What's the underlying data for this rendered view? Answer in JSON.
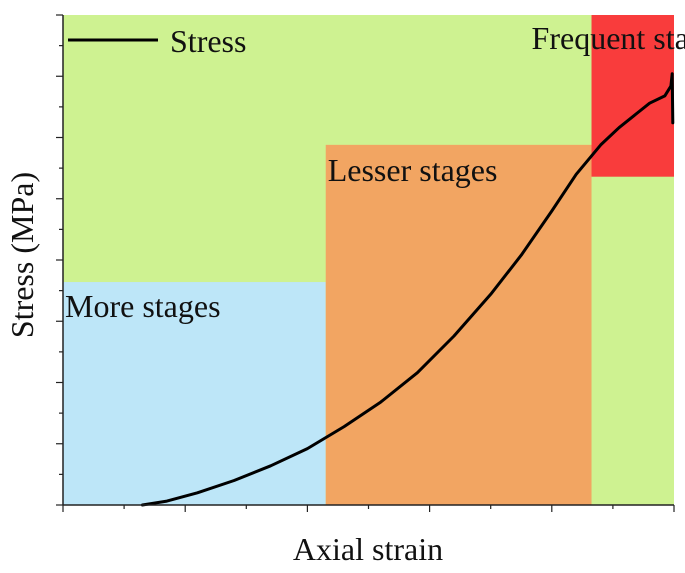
{
  "chart_data": {
    "type": "line",
    "xlabel": "Axial strain",
    "ylabel": "Stress (MPa)",
    "xlim": [
      0,
      1
    ],
    "ylim": [
      0,
      1
    ],
    "legend": {
      "position": "top-left",
      "entries": [
        "Stress"
      ]
    },
    "regions": [
      {
        "name": "More stages",
        "x0": 0.0,
        "x1": 0.43,
        "y0": 0.0,
        "y1": 0.455,
        "color": "#bde6f8"
      },
      {
        "name": "Lesser stages",
        "x0": 0.43,
        "x1": 0.865,
        "y0": 0.0,
        "y1": 0.735,
        "color": "#f2a562"
      },
      {
        "name": "Frequent stages",
        "x0": 0.865,
        "x1": 1.0,
        "y0": 0.67,
        "y1": 1.0,
        "color": "#f93c3c"
      }
    ],
    "background_color": "#cef291",
    "series": [
      {
        "name": "Stress",
        "color": "#000000",
        "x": [
          0.13,
          0.17,
          0.22,
          0.28,
          0.34,
          0.4,
          0.46,
          0.52,
          0.58,
          0.64,
          0.7,
          0.75,
          0.8,
          0.84,
          0.88,
          0.91,
          0.94,
          0.96,
          0.985,
          0.995,
          0.997,
          0.998
        ],
        "y": [
          0.0,
          0.008,
          0.025,
          0.05,
          0.08,
          0.115,
          0.16,
          0.21,
          0.27,
          0.345,
          0.43,
          0.51,
          0.6,
          0.675,
          0.735,
          0.77,
          0.8,
          0.82,
          0.835,
          0.855,
          0.88,
          0.78
        ]
      }
    ]
  }
}
